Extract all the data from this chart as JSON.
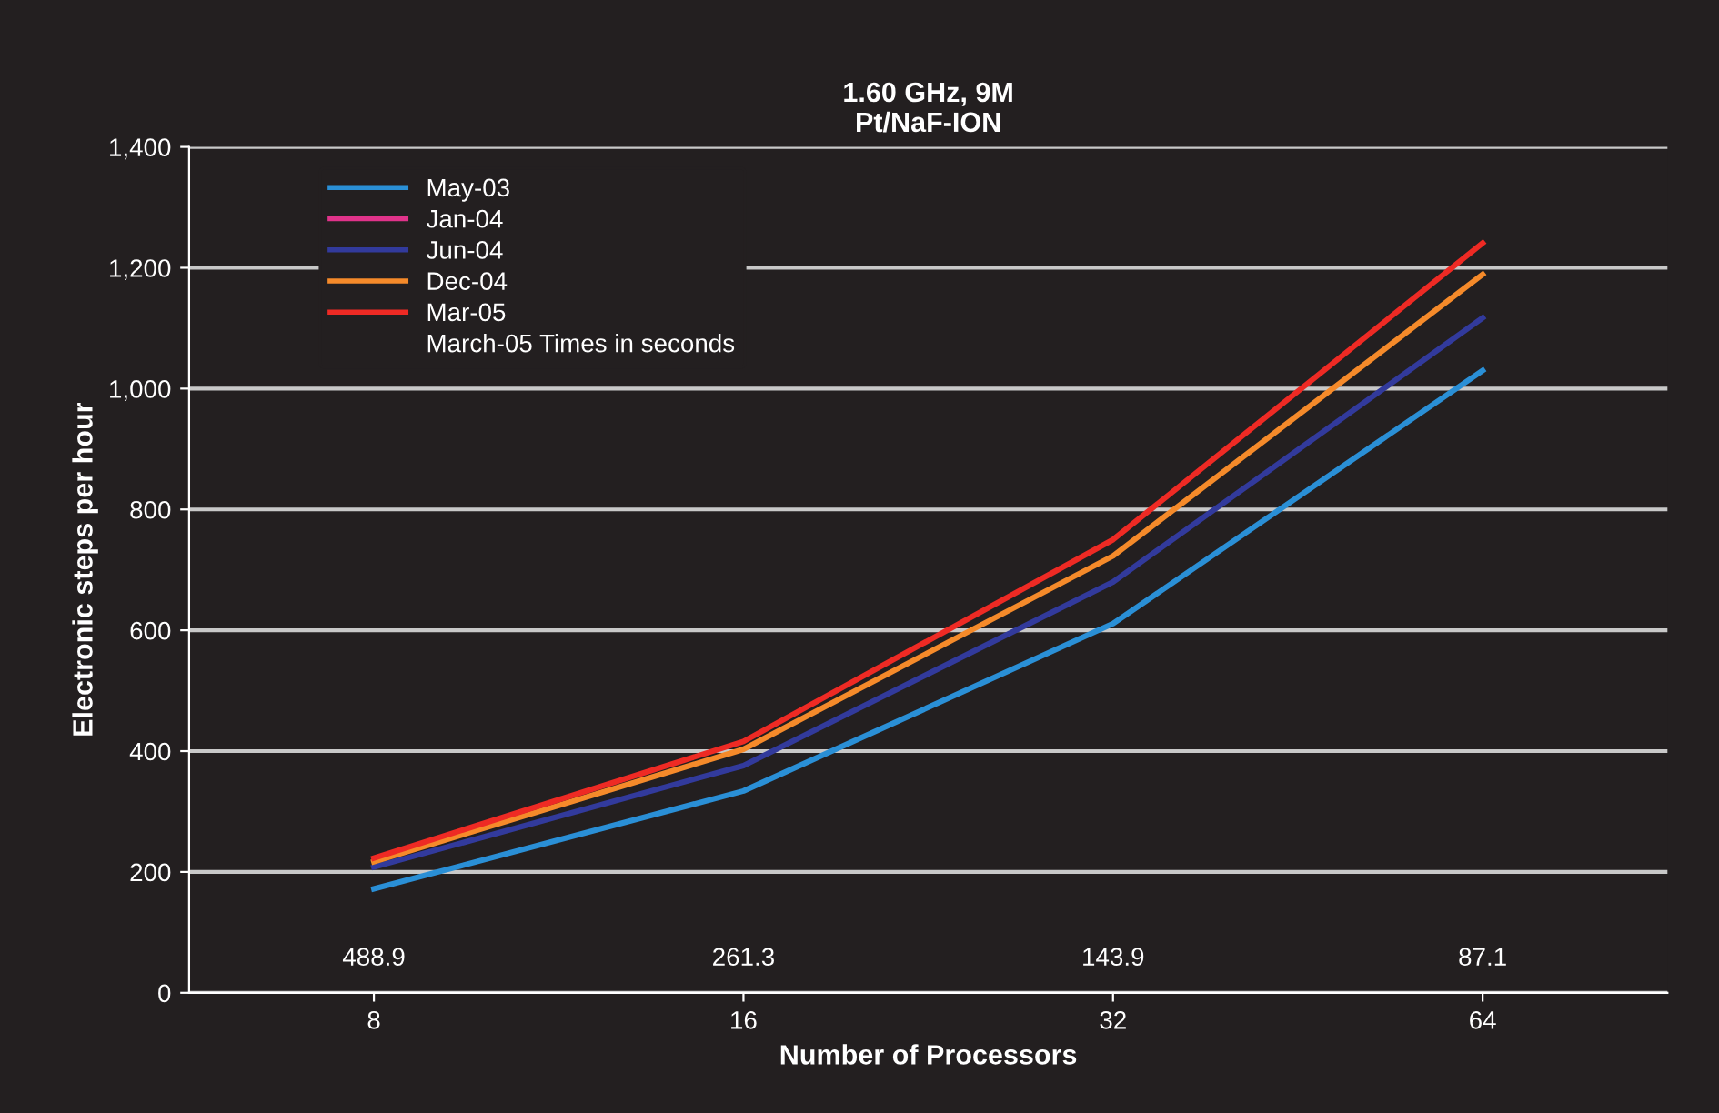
{
  "chart_data": {
    "type": "line",
    "title": "1.60 GHz, 9M\nPt/NaF-ION",
    "xlabel": "Number of Processors",
    "ylabel": "Electronic steps per hour",
    "categories": [
      "8",
      "16",
      "32",
      "64"
    ],
    "series": [
      {
        "name": "May-03",
        "color": "#2a8fd6",
        "values": [
          172,
          334,
          611,
          1030
        ]
      },
      {
        "name": "Jan-04",
        "color": "#e0338a",
        "values": [
          null,
          null,
          null,
          null
        ]
      },
      {
        "name": "Jun-04",
        "color": "#323a9c",
        "values": [
          208,
          376,
          680,
          1117
        ]
      },
      {
        "name": "Dec-04",
        "color": "#f58a2a",
        "values": [
          217,
          403,
          723,
          1189
        ]
      },
      {
        "name": "Mar-05",
        "color": "#ee2a24",
        "values": [
          223,
          416,
          750,
          1241
        ]
      }
    ],
    "legend_title": "March-05 Times in seconds",
    "annotations": [
      "488.9",
      "261.3",
      "143.9",
      "87.1"
    ],
    "ylim": [
      0,
      1400
    ],
    "yticks": [
      0,
      {
        "value": 200,
        "label": "200"
      },
      {
        "value": 400,
        "label": "400"
      },
      {
        "value": 600,
        "label": "600"
      },
      {
        "value": 800,
        "label": "800"
      },
      {
        "value": 1000,
        "label": "1,000"
      },
      {
        "value": 1200,
        "label": "1,200"
      },
      {
        "value": 1400,
        "label": "1,400"
      }
    ],
    "grid": "y",
    "legend": "top left",
    "marker": "none",
    "line_style": "solid"
  }
}
